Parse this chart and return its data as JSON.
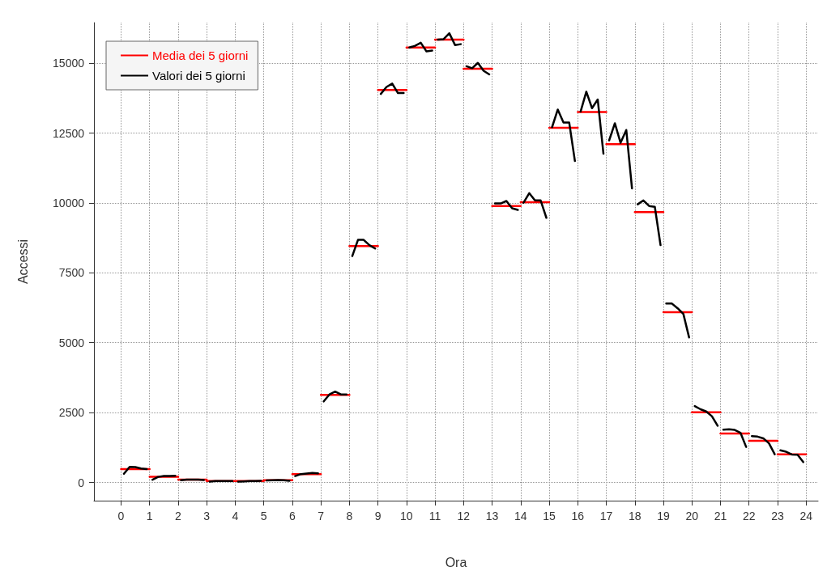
{
  "chart_data": {
    "type": "line",
    "xlabel": "Ora",
    "ylabel": "Accessi",
    "xlim": [
      -0.95,
      24.42
    ],
    "ylim": [
      -650,
      16450
    ],
    "xticks": [
      0,
      1,
      2,
      3,
      4,
      5,
      6,
      7,
      8,
      9,
      10,
      11,
      12,
      13,
      14,
      15,
      16,
      17,
      18,
      19,
      20,
      21,
      22,
      23,
      24
    ],
    "yticks": [
      0,
      2500,
      5000,
      7500,
      10000,
      12500,
      15000
    ],
    "grid": true,
    "legend": "top left",
    "marker": "none",
    "line_style": "solid",
    "series": [
      {
        "name": "Media dei 5 giorni",
        "color": "#ff0000",
        "x": [
          0,
          1,
          null,
          1,
          2,
          null,
          2,
          3,
          null,
          3,
          4,
          null,
          4,
          5,
          null,
          5,
          6,
          null,
          6,
          7,
          null,
          7,
          8,
          null,
          8,
          9,
          null,
          9,
          10,
          null,
          10,
          11,
          null,
          11,
          12,
          null,
          12,
          13,
          null,
          13,
          14,
          null,
          14,
          15,
          null,
          15,
          16,
          null,
          16,
          17,
          null,
          17,
          18,
          null,
          18,
          19,
          null,
          19,
          20,
          null,
          20,
          21,
          null,
          21,
          22,
          null,
          22,
          23,
          null,
          23,
          24
        ],
        "values": [
          480,
          480,
          null,
          200,
          200,
          null,
          100,
          100,
          null,
          50,
          50,
          null,
          50,
          50,
          null,
          80,
          80,
          null,
          300,
          300,
          null,
          3130,
          3130,
          null,
          8460,
          8460,
          null,
          14040,
          14040,
          null,
          15560,
          15560,
          null,
          15840,
          15840,
          null,
          14800,
          14800,
          null,
          9890,
          9890,
          null,
          10030,
          10030,
          null,
          12690,
          12690,
          null,
          13250,
          13250,
          null,
          12100,
          12100,
          null,
          9670,
          9670,
          null,
          6090,
          6090,
          null,
          2510,
          2510,
          null,
          1750,
          1750,
          null,
          1490,
          1490,
          null,
          1010,
          1010
        ]
      },
      {
        "name": "Valori dei 5 giorni",
        "color": "#000000",
        "x": [
          0.1,
          0.3,
          0.5,
          0.7,
          0.9,
          0.95,
          1.1,
          1.3,
          1.5,
          1.7,
          1.9,
          1.95,
          2.1,
          2.3,
          2.5,
          2.7,
          2.9,
          2.95,
          3.1,
          3.3,
          3.5,
          3.7,
          3.9,
          3.95,
          4.1,
          4.3,
          4.5,
          4.7,
          4.9,
          4.95,
          5.1,
          5.3,
          5.5,
          5.7,
          5.9,
          5.95,
          6.1,
          6.3,
          6.5,
          6.7,
          6.9,
          6.95,
          7.1,
          7.3,
          7.5,
          7.7,
          7.9,
          7.95,
          8.1,
          8.3,
          8.5,
          8.7,
          8.9,
          8.95,
          9.1,
          9.3,
          9.5,
          9.7,
          9.9,
          9.95,
          10.1,
          10.3,
          10.5,
          10.7,
          10.9,
          10.95,
          11.1,
          11.3,
          11.5,
          11.7,
          11.9,
          11.95,
          12.1,
          12.3,
          12.5,
          12.7,
          12.9,
          12.95,
          13.1,
          13.3,
          13.5,
          13.7,
          13.9,
          13.95,
          14.1,
          14.3,
          14.5,
          14.7,
          14.9,
          14.95,
          15.1,
          15.3,
          15.5,
          15.7,
          15.9,
          15.95,
          16.1,
          16.3,
          16.5,
          16.7,
          16.9,
          16.95,
          17.1,
          17.3,
          17.5,
          17.7,
          17.9,
          17.95,
          18.1,
          18.3,
          18.5,
          18.7,
          18.9,
          18.95,
          19.1,
          19.3,
          19.5,
          19.7,
          19.9,
          19.95,
          20.1,
          20.3,
          20.5,
          20.7,
          20.9,
          20.95,
          21.1,
          21.3,
          21.5,
          21.7,
          21.9,
          21.95,
          22.1,
          22.3,
          22.5,
          22.7,
          22.9,
          22.95,
          23.1,
          23.3,
          23.5,
          23.7,
          23.9
        ],
        "values": [
          310,
          560,
          550,
          500,
          480,
          null,
          100,
          200,
          230,
          230,
          240,
          null,
          80,
          100,
          100,
          100,
          90,
          null,
          30,
          50,
          50,
          50,
          50,
          null,
          30,
          40,
          50,
          50,
          60,
          null,
          70,
          80,
          90,
          80,
          60,
          null,
          230,
          300,
          320,
          340,
          330,
          null,
          2900,
          3150,
          3250,
          3150,
          3150,
          null,
          8100,
          8680,
          8680,
          8490,
          8370,
          null,
          13900,
          14150,
          14270,
          13930,
          13930,
          null,
          15560,
          15620,
          15730,
          15420,
          15450,
          null,
          15840,
          15860,
          16070,
          15650,
          15680,
          null,
          14890,
          14820,
          15010,
          14730,
          14600,
          null,
          9980,
          9980,
          10070,
          9810,
          9750,
          null,
          10010,
          10350,
          10090,
          10090,
          9470,
          null,
          12710,
          13340,
          12880,
          12880,
          11500,
          null,
          13270,
          13980,
          13390,
          13700,
          11760,
          null,
          12240,
          12850,
          12150,
          12610,
          10520,
          null,
          9950,
          10090,
          9890,
          9860,
          8490,
          null,
          6400,
          6400,
          6230,
          6030,
          5190,
          null,
          2730,
          2620,
          2540,
          2370,
          2030,
          null,
          1890,
          1900,
          1880,
          1780,
          1270,
          null,
          1660,
          1640,
          1580,
          1400,
          1010,
          null,
          1150,
          1100,
          1000,
          990,
          730
        ]
      }
    ]
  }
}
